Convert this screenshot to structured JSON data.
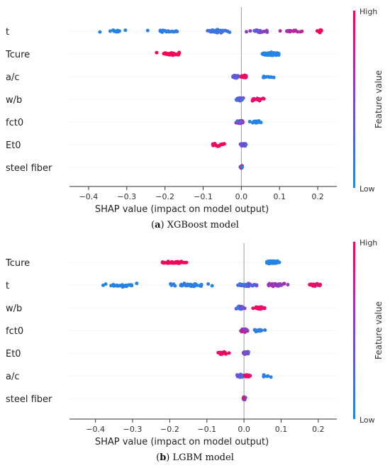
{
  "chart_data": [
    {
      "type": "scatter",
      "subtype": "shap-beeswarm",
      "xlabel": "SHAP value (impact on model output)",
      "xlim": [
        -0.45,
        0.25
      ],
      "x_ticks": [
        -0.4,
        -0.3,
        -0.2,
        -0.1,
        0.0,
        0.1,
        0.2
      ],
      "x_tick_labels": [
        "−0.4",
        "−0.3",
        "−0.2",
        "−0.1",
        "0.0",
        "0.1",
        "0.2"
      ],
      "features": [
        "t",
        "Tcure",
        "a/c",
        "w/b",
        "fct0",
        "Et0",
        "steel fiber"
      ],
      "colorbar": {
        "label": "Feature value",
        "high": "High",
        "low": "Low"
      },
      "caption": {
        "letter": "a",
        "text": " XGBoost model"
      },
      "colors": {
        "low": "#1e88e5",
        "mid": "#7b46d3",
        "high": "#ff0051"
      },
      "series": [
        {
          "feature": "t",
          "clusters": [
            {
              "center": -0.34,
              "spread": 0.06,
              "n": 14,
              "color": [
                0.0,
                0.05
              ]
            },
            {
              "center": -0.2,
              "spread": 0.07,
              "n": 20,
              "color": [
                0.03,
                0.12
              ]
            },
            {
              "center": -0.06,
              "spread": 0.05,
              "n": 30,
              "color": [
                0.05,
                0.25
              ]
            },
            {
              "center": 0.05,
              "spread": 0.04,
              "n": 26,
              "color": [
                0.3,
                0.65
              ]
            },
            {
              "center": 0.13,
              "spread": 0.04,
              "n": 18,
              "color": [
                0.55,
                0.85
              ]
            },
            {
              "center": 0.205,
              "spread": 0.015,
              "n": 12,
              "color": [
                0.9,
                1.0
              ]
            }
          ]
        },
        {
          "feature": "Tcure",
          "clusters": [
            {
              "center": -0.18,
              "spread": 0.05,
              "n": 40,
              "color": [
                0.95,
                1.0
              ]
            },
            {
              "center": 0.08,
              "spread": 0.04,
              "n": 70,
              "color": [
                0.0,
                0.05
              ]
            }
          ]
        },
        {
          "feature": "a/c",
          "clusters": [
            {
              "center": -0.015,
              "spread": 0.012,
              "n": 30,
              "color": [
                0.0,
                0.45
              ]
            },
            {
              "center": 0.005,
              "spread": 0.012,
              "n": 25,
              "color": [
                0.85,
                1.0
              ]
            },
            {
              "center": 0.07,
              "spread": 0.05,
              "n": 8,
              "color": [
                0.0,
                0.06
              ]
            }
          ]
        },
        {
          "feature": "w/b",
          "clusters": [
            {
              "center": -0.005,
              "spread": 0.015,
              "n": 60,
              "color": [
                0.0,
                0.6
              ]
            },
            {
              "center": 0.045,
              "spread": 0.03,
              "n": 14,
              "color": [
                0.8,
                1.0
              ]
            }
          ]
        },
        {
          "feature": "fct0",
          "clusters": [
            {
              "center": -0.005,
              "spread": 0.015,
              "n": 45,
              "color": [
                0.2,
                1.0
              ]
            },
            {
              "center": 0.04,
              "spread": 0.03,
              "n": 15,
              "color": [
                0.0,
                0.08
              ]
            }
          ]
        },
        {
          "feature": "Et0",
          "clusters": [
            {
              "center": -0.06,
              "spread": 0.03,
              "n": 14,
              "color": [
                0.9,
                1.0
              ]
            },
            {
              "center": 0.005,
              "spread": 0.012,
              "n": 35,
              "color": [
                0.0,
                0.9
              ]
            }
          ]
        },
        {
          "feature": "steel fiber",
          "clusters": [
            {
              "center": 0.0,
              "spread": 0.006,
              "n": 25,
              "color": [
                0.0,
                1.0
              ]
            }
          ]
        }
      ]
    },
    {
      "type": "scatter",
      "subtype": "shap-beeswarm",
      "xlabel": "SHAP value (impact on model output)",
      "xlim": [
        -0.47,
        0.25
      ],
      "x_ticks": [
        -0.4,
        -0.3,
        -0.2,
        -0.1,
        0.0,
        0.1,
        0.2
      ],
      "x_tick_labels": [
        "−0.4",
        "−0.3",
        "−0.2",
        "−0.1",
        "0.0",
        "0.1",
        "0.2"
      ],
      "features": [
        "Tcure",
        "t",
        "w/b",
        "fct0",
        "Et0",
        "a/c",
        "steel fiber"
      ],
      "colorbar": {
        "label": "Feature value",
        "high": "High",
        "low": "Low"
      },
      "caption": {
        "letter": "b",
        "text": " LGBM model"
      },
      "colors": {
        "low": "#1e88e5",
        "mid": "#7b46d3",
        "high": "#ff0051"
      },
      "series": [
        {
          "feature": "Tcure",
          "clusters": [
            {
              "center": -0.19,
              "spread": 0.05,
              "n": 45,
              "color": [
                0.95,
                1.0
              ]
            },
            {
              "center": 0.08,
              "spread": 0.03,
              "n": 80,
              "color": [
                0.0,
                0.05
              ]
            }
          ]
        },
        {
          "feature": "t",
          "clusters": [
            {
              "center": -0.33,
              "spread": 0.08,
              "n": 25,
              "color": [
                0.0,
                0.05
              ]
            },
            {
              "center": -0.15,
              "spread": 0.08,
              "n": 35,
              "color": [
                0.02,
                0.12
              ]
            },
            {
              "center": 0.01,
              "spread": 0.04,
              "n": 40,
              "color": [
                0.1,
                0.5
              ]
            },
            {
              "center": 0.09,
              "spread": 0.04,
              "n": 30,
              "color": [
                0.45,
                0.8
              ]
            },
            {
              "center": 0.19,
              "spread": 0.03,
              "n": 22,
              "color": [
                0.85,
                1.0
              ]
            }
          ]
        },
        {
          "feature": "w/b",
          "clusters": [
            {
              "center": -0.01,
              "spread": 0.015,
              "n": 55,
              "color": [
                0.0,
                0.6
              ]
            },
            {
              "center": 0.04,
              "spread": 0.03,
              "n": 20,
              "color": [
                0.8,
                1.0
              ]
            }
          ]
        },
        {
          "feature": "fct0",
          "clusters": [
            {
              "center": 0.0,
              "spread": 0.015,
              "n": 50,
              "color": [
                0.3,
                1.0
              ]
            },
            {
              "center": 0.04,
              "spread": 0.025,
              "n": 15,
              "color": [
                0.0,
                0.1
              ]
            }
          ]
        },
        {
          "feature": "Et0",
          "clusters": [
            {
              "center": -0.055,
              "spread": 0.03,
              "n": 15,
              "color": [
                0.9,
                1.0
              ]
            },
            {
              "center": 0.005,
              "spread": 0.012,
              "n": 40,
              "color": [
                0.0,
                0.9
              ]
            }
          ]
        },
        {
          "feature": "a/c",
          "clusters": [
            {
              "center": -0.01,
              "spread": 0.015,
              "n": 35,
              "color": [
                0.0,
                0.5
              ]
            },
            {
              "center": 0.01,
              "spread": 0.012,
              "n": 25,
              "color": [
                0.85,
                1.0
              ]
            },
            {
              "center": 0.06,
              "spread": 0.04,
              "n": 6,
              "color": [
                0.0,
                0.06
              ]
            }
          ]
        },
        {
          "feature": "steel fiber",
          "clusters": [
            {
              "center": 0.0,
              "spread": 0.005,
              "n": 25,
              "color": [
                0.0,
                1.0
              ]
            }
          ]
        }
      ]
    }
  ]
}
